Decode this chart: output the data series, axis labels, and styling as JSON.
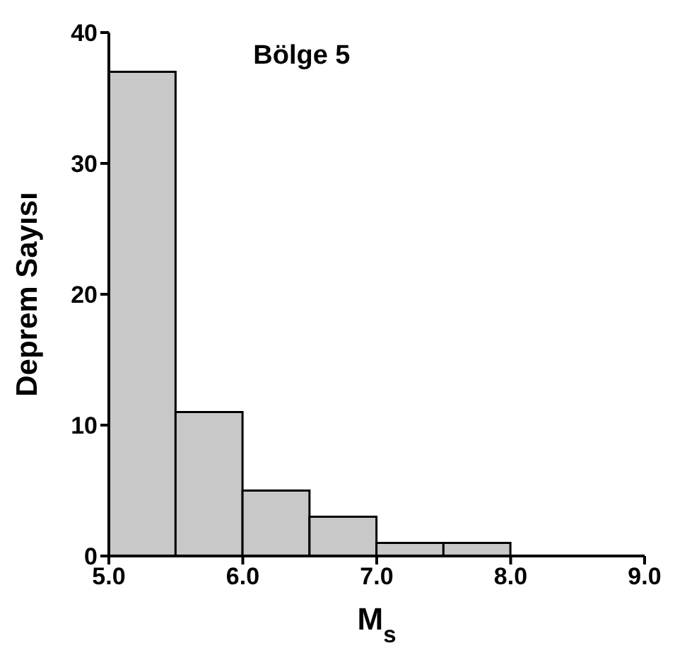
{
  "chart_data": {
    "type": "histogram",
    "title": "Bölge 5",
    "xlabel": "M$_{s}$",
    "ylabel": "Deprem Sayısı",
    "bins": [
      5.0,
      5.5,
      6.0,
      6.5,
      7.0,
      7.5,
      8.0
    ],
    "values": [
      37,
      11,
      5,
      3,
      1,
      1
    ],
    "color": "#c8c8c8",
    "xlim": [
      5,
      9
    ],
    "xticks": [
      {
        "value": 5,
        "label": "5.0"
      },
      {
        "value": 6,
        "label": "6.0"
      },
      {
        "value": 7,
        "label": "7.0"
      },
      {
        "value": 8,
        "label": "8.0"
      },
      {
        "value": 9,
        "label": "9.0"
      }
    ],
    "ylim": [
      0,
      40
    ],
    "yticks": [
      0,
      10,
      20,
      30,
      40
    ],
    "grid": false
  }
}
